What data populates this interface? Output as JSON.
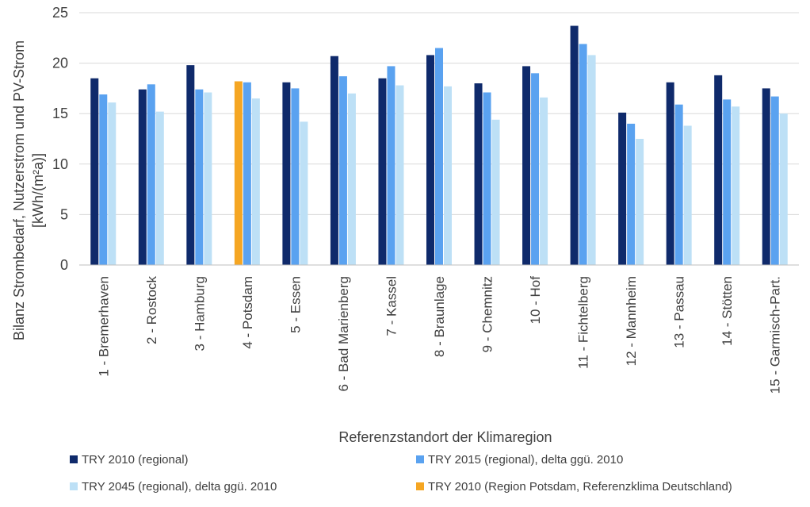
{
  "chart_data": {
    "type": "bar",
    "xlabel": "Referenzstandort der Klimaregion",
    "ylabel_line1": "Bilanz Strombedarf, Nutzerstrom und PV-Strom",
    "ylabel_line2": "[kWh/(m²a)]",
    "ylim": [
      0,
      25
    ],
    "yticks": [
      0,
      5,
      10,
      15,
      20,
      25
    ],
    "grid": "horizontal",
    "legend_placement": "bottom",
    "categories": [
      "1 - Bremerhaven",
      "2 - Rostock",
      "3 - Hamburg",
      "4 - Potsdam",
      "5 - Essen",
      "6 - Bad Marienberg",
      "7 - Kassel",
      "8 - Braunlage",
      "9 - Chemnitz",
      "10 - Hof",
      "11 - Fichtelberg",
      "12 - Mannheim",
      "13 - Passau",
      "14 - Stötten",
      "15 - Garmisch-Part."
    ],
    "series": [
      {
        "name": "TRY 2010 (regional)",
        "color": "#0f2a6b",
        "values": [
          18.5,
          17.4,
          19.8,
          18.2,
          18.1,
          20.7,
          18.5,
          20.8,
          18.0,
          19.7,
          23.7,
          15.1,
          18.1,
          18.8,
          17.5
        ]
      },
      {
        "name": "TRY 2015 (regional), delta ggü. 2010",
        "color": "#5aa2f0",
        "values": [
          16.9,
          17.9,
          17.4,
          18.1,
          17.5,
          18.7,
          19.7,
          21.5,
          17.1,
          19.0,
          21.9,
          14.0,
          15.9,
          16.4,
          16.7
        ]
      },
      {
        "name": "TRY 2045 (regional), delta ggü. 2010",
        "color": "#bde0f6",
        "values": [
          16.1,
          15.2,
          17.1,
          16.5,
          14.2,
          17.0,
          17.8,
          17.7,
          14.4,
          16.6,
          20.8,
          12.5,
          13.8,
          15.7,
          15.0
        ]
      }
    ],
    "highlight": {
      "category_index": 3,
      "series_index": 0,
      "color": "#f5a623",
      "legend_label": "TRY 2010 (Region Potsdam, Referenzklima Deutschland)"
    },
    "legend": [
      {
        "label": "TRY 2010 (regional)",
        "color": "#0f2a6b"
      },
      {
        "label": "TRY 2015 (regional), delta ggü. 2010",
        "color": "#5aa2f0"
      },
      {
        "label": "TRY 2045 (regional), delta ggü. 2010",
        "color": "#bde0f6"
      },
      {
        "label": "TRY 2010 (Region Potsdam, Referenzklima Deutschland)",
        "color": "#f5a623"
      }
    ]
  }
}
